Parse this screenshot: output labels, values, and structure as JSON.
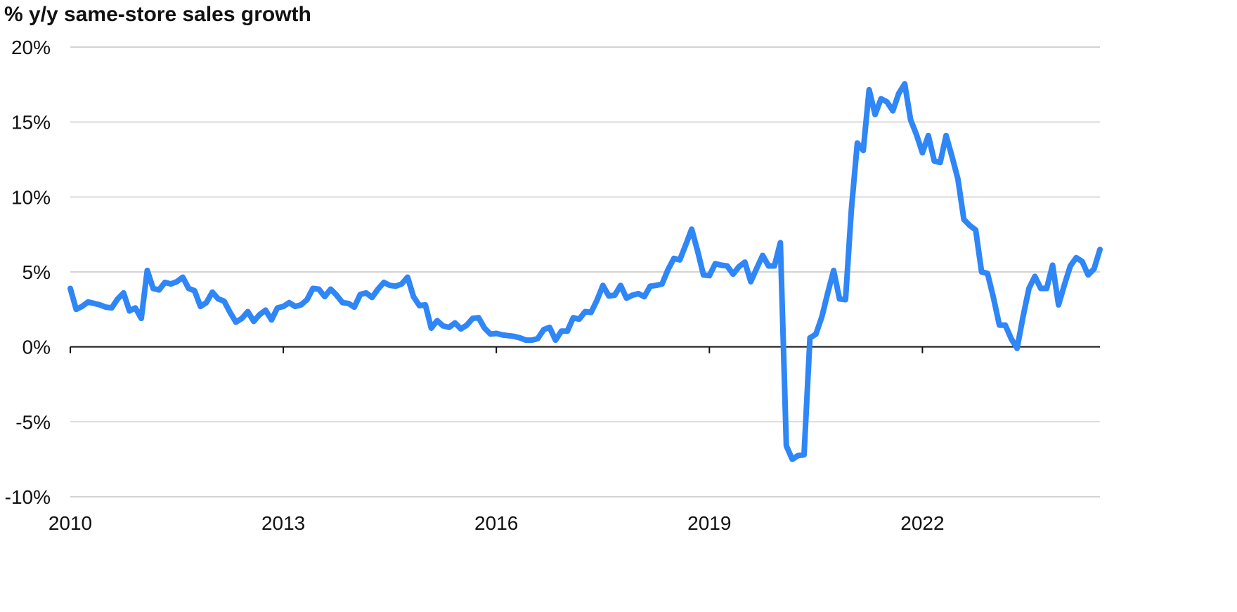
{
  "chart_data": {
    "type": "line",
    "title": "% y/y same-store sales growth",
    "xlabel": "",
    "ylabel": "",
    "x_ticks": [
      "2010",
      "2013",
      "2016",
      "2019",
      "2022"
    ],
    "y_ticks": [
      "20%",
      "15%",
      "10%",
      "5%",
      "0%",
      "-5%",
      "-10%"
    ],
    "xlim": [
      "2010-01",
      "2024-07"
    ],
    "ylim": [
      -10,
      20
    ],
    "grid": true,
    "legend": "none",
    "colors": {
      "line": "#2f86f6",
      "grid": "#b9b9b9",
      "zero_axis": "#111111",
      "text": "#111111"
    },
    "series": [
      {
        "x": [
          "2010-01",
          "2010-02",
          "2010-03",
          "2010-04",
          "2010-05",
          "2010-06",
          "2010-07",
          "2010-08",
          "2010-09",
          "2010-10",
          "2010-11",
          "2010-12",
          "2011-01",
          "2011-02",
          "2011-03",
          "2011-04",
          "2011-05",
          "2011-06",
          "2011-07",
          "2011-08",
          "2011-09",
          "2011-10",
          "2011-11",
          "2011-12",
          "2012-01",
          "2012-02",
          "2012-03",
          "2012-04",
          "2012-05",
          "2012-06",
          "2012-07",
          "2012-08",
          "2012-09",
          "2012-10",
          "2012-11",
          "2012-12",
          "2013-01",
          "2013-02",
          "2013-03",
          "2013-04",
          "2013-05",
          "2013-06",
          "2013-07",
          "2013-08",
          "2013-09",
          "2013-10",
          "2013-11",
          "2013-12",
          "2014-01",
          "2014-02",
          "2014-03",
          "2014-04",
          "2014-05",
          "2014-06",
          "2014-07",
          "2014-08",
          "2014-09",
          "2014-10",
          "2014-11",
          "2014-12",
          "2015-01",
          "2015-02",
          "2015-03",
          "2015-04",
          "2015-05",
          "2015-06",
          "2015-07",
          "2015-08",
          "2015-09",
          "2015-10",
          "2015-11",
          "2015-12",
          "2016-01",
          "2016-02",
          "2016-03",
          "2016-04",
          "2016-05",
          "2016-06",
          "2016-07",
          "2016-08",
          "2016-09",
          "2016-10",
          "2016-11",
          "2016-12",
          "2017-01",
          "2017-02",
          "2017-03",
          "2017-04",
          "2017-05",
          "2017-06",
          "2017-07",
          "2017-08",
          "2017-09",
          "2017-10",
          "2017-11",
          "2017-12",
          "2018-01",
          "2018-02",
          "2018-03",
          "2018-04",
          "2018-05",
          "2018-06",
          "2018-07",
          "2018-08",
          "2018-09",
          "2018-10",
          "2018-11",
          "2018-12",
          "2019-01",
          "2019-02",
          "2019-03",
          "2019-04",
          "2019-05",
          "2019-06",
          "2019-07",
          "2019-08",
          "2019-09",
          "2019-10",
          "2019-11",
          "2019-12",
          "2020-01",
          "2020-02",
          "2020-03",
          "2020-04",
          "2020-05",
          "2020-06",
          "2020-07",
          "2020-08",
          "2020-09",
          "2020-10",
          "2020-11",
          "2020-12",
          "2021-01",
          "2021-02",
          "2021-03",
          "2021-04",
          "2021-05",
          "2021-06",
          "2021-07",
          "2021-08",
          "2021-09",
          "2021-10",
          "2021-11",
          "2021-12",
          "2022-01",
          "2022-02",
          "2022-03",
          "2022-04",
          "2022-05",
          "2022-06",
          "2022-07",
          "2022-08",
          "2022-09",
          "2022-10",
          "2022-11",
          "2022-12",
          "2023-01",
          "2023-02",
          "2023-03",
          "2023-04",
          "2023-05",
          "2023-06",
          "2023-07",
          "2023-08",
          "2023-09",
          "2023-10",
          "2023-11",
          "2023-12",
          "2024-01",
          "2024-02",
          "2024-03",
          "2024-04",
          "2024-05",
          "2024-06",
          "2024-07"
        ],
        "values": [
          3.9,
          2.5,
          2.7,
          3.0,
          2.9,
          2.8,
          2.65,
          2.6,
          3.2,
          3.6,
          2.4,
          2.6,
          1.9,
          5.1,
          3.9,
          3.8,
          4.3,
          4.2,
          4.35,
          4.65,
          3.9,
          3.75,
          2.7,
          2.95,
          3.65,
          3.2,
          3.05,
          2.3,
          1.65,
          1.9,
          2.35,
          1.7,
          2.15,
          2.45,
          1.8,
          2.6,
          2.7,
          2.95,
          2.7,
          2.8,
          3.15,
          3.9,
          3.85,
          3.35,
          3.85,
          3.45,
          2.95,
          2.9,
          2.65,
          3.5,
          3.6,
          3.3,
          3.85,
          4.3,
          4.1,
          4.05,
          4.2,
          4.65,
          3.35,
          2.75,
          2.8,
          1.25,
          1.75,
          1.4,
          1.3,
          1.6,
          1.2,
          1.45,
          1.9,
          1.95,
          1.25,
          0.85,
          0.9,
          0.8,
          0.75,
          0.7,
          0.6,
          0.45,
          0.45,
          0.55,
          1.15,
          1.3,
          0.45,
          1.05,
          1.05,
          1.95,
          1.85,
          2.35,
          2.3,
          3.1,
          4.1,
          3.4,
          3.45,
          4.1,
          3.25,
          3.45,
          3.55,
          3.35,
          4.05,
          4.1,
          4.2,
          5.15,
          5.9,
          5.8,
          6.8,
          7.85,
          6.4,
          4.8,
          4.75,
          5.55,
          5.45,
          5.4,
          4.85,
          5.35,
          5.65,
          4.35,
          5.25,
          6.1,
          5.4,
          5.4,
          6.95,
          -6.6,
          -7.5,
          -7.25,
          -7.2,
          0.6,
          0.85,
          2.0,
          3.6,
          5.1,
          3.2,
          3.15,
          9.2,
          13.6,
          13.1,
          17.15,
          15.5,
          16.55,
          16.35,
          15.75,
          16.9,
          17.55,
          15.15,
          14.15,
          12.95,
          14.1,
          12.4,
          12.3,
          14.1,
          12.7,
          11.2,
          8.5,
          8.1,
          7.8,
          5.0,
          4.9,
          3.3,
          1.45,
          1.45,
          0.55,
          -0.1,
          2.0,
          3.9,
          4.7,
          3.9,
          3.9,
          5.45,
          2.8,
          4.15,
          5.4,
          5.95,
          5.7,
          4.8,
          5.2,
          6.5
        ]
      }
    ]
  }
}
